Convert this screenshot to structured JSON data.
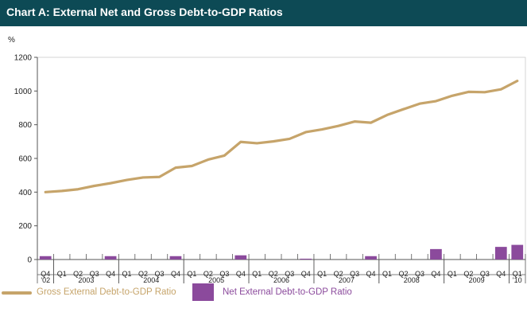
{
  "title": "Chart A: External Net and Gross Debt-to-GDP Ratios",
  "colors": {
    "header_bg": "#0d4a55",
    "gross": "#c6a46a",
    "net": "#8b4a9c",
    "axis": "#555555",
    "grid": "#eeeeee"
  },
  "chart_data": {
    "type": "bar+line",
    "title": "Chart A: External Net and Gross Debt-to-GDP Ratios",
    "ylabel": "%",
    "ylim": [
      0,
      1200
    ],
    "yticks": [
      0,
      200,
      400,
      600,
      800,
      1000,
      1200
    ],
    "categories": [
      "Q4 '02",
      "Q1 2003",
      "Q2 2003",
      "Q3 2003",
      "Q4 2003",
      "Q1 2004",
      "Q2 2004",
      "Q3 2004",
      "Q4 2004",
      "Q1 2005",
      "Q2 2005",
      "Q3 2005",
      "Q4 2005",
      "Q1 2006",
      "Q2 2006",
      "Q3 2006",
      "Q4 2006",
      "Q1 2007",
      "Q2 2007",
      "Q3 2007",
      "Q4 2007",
      "Q1 2008",
      "Q2 2008",
      "Q3 2008",
      "Q4 2008",
      "Q1 2009",
      "Q2 2009",
      "Q3 2009",
      "Q4 2009",
      "Q1 '10"
    ],
    "quarter_labels": [
      "Q4",
      "Q1",
      "Q2",
      "Q3",
      "Q4",
      "Q1",
      "Q2",
      "Q3",
      "Q4",
      "Q1",
      "Q2",
      "Q3",
      "Q4",
      "Q1",
      "Q2",
      "Q3",
      "Q4",
      "Q1",
      "Q2",
      "Q3",
      "Q4",
      "Q1",
      "Q2",
      "Q3",
      "Q4",
      "Q1",
      "Q2",
      "Q3",
      "Q4",
      "Q1"
    ],
    "year_groups": [
      {
        "label": "'02",
        "start": 0,
        "end": 0
      },
      {
        "label": "2003",
        "start": 1,
        "end": 4
      },
      {
        "label": "2004",
        "start": 5,
        "end": 8
      },
      {
        "label": "2005",
        "start": 9,
        "end": 12
      },
      {
        "label": "2006",
        "start": 13,
        "end": 16
      },
      {
        "label": "2007",
        "start": 17,
        "end": 20
      },
      {
        "label": "2008",
        "start": 21,
        "end": 24
      },
      {
        "label": "2009",
        "start": 25,
        "end": 28
      },
      {
        "label": "'10",
        "start": 29,
        "end": 29
      }
    ],
    "series": [
      {
        "name": "Gross External Debt-to-GDP Ratio",
        "type": "line",
        "color": "#c6a46a",
        "values": [
          400,
          407,
          417,
          437,
          453,
          472,
          487,
          490,
          545,
          555,
          593,
          617,
          698,
          690,
          701,
          716,
          756,
          772,
          793,
          819,
          812,
          858,
          892,
          925,
          940,
          972,
          995,
          993,
          1010,
          1060
        ]
      },
      {
        "name": "Net External Debt-to-GDP Ratio",
        "type": "bar",
        "color": "#8b4a9c",
        "values": [
          20,
          null,
          null,
          null,
          20,
          null,
          null,
          null,
          20,
          null,
          null,
          null,
          25,
          null,
          null,
          null,
          5,
          null,
          null,
          null,
          20,
          null,
          null,
          null,
          62,
          null,
          null,
          null,
          75,
          87
        ]
      }
    ],
    "legend_position": "bottom"
  }
}
